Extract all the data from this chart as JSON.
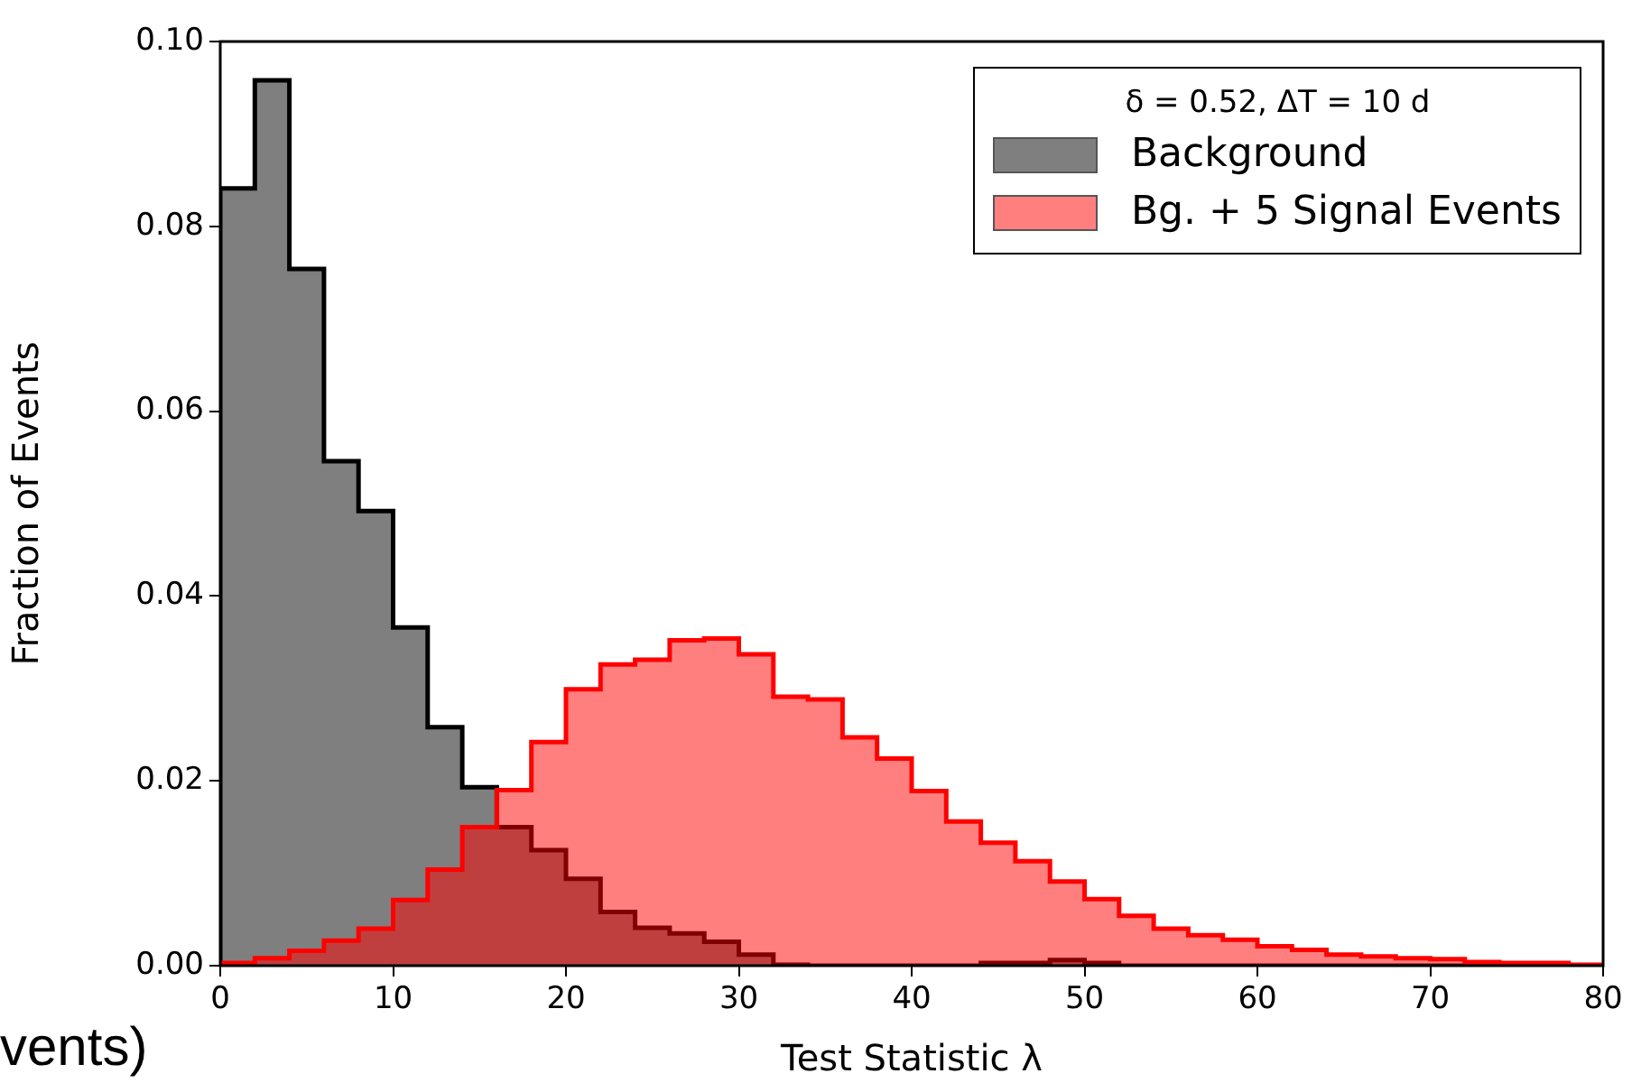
{
  "chart_data": {
    "type": "histogram",
    "xlabel": "Test Statistic λ",
    "ylabel": "Fraction of Events",
    "legend_title": "δ = 0.52,  ΔT = 10 d",
    "legend": "top right",
    "grid": false,
    "bins": [
      0,
      2,
      4,
      6,
      8,
      10,
      12,
      14,
      16,
      18,
      20,
      22,
      24,
      26,
      28,
      30,
      32,
      34,
      36,
      38,
      40,
      42,
      44,
      46,
      48,
      50,
      52,
      54,
      56,
      58,
      60,
      62,
      64,
      66,
      68,
      70,
      72,
      74,
      76,
      78,
      80
    ],
    "series": [
      {
        "name": "Background",
        "color": "#7f7f7f",
        "values": [
          0.0841,
          0.0958,
          0.0754,
          0.0546,
          0.0492,
          0.0366,
          0.0258,
          0.0193,
          0.015,
          0.0125,
          0.0094,
          0.0058,
          0.0041,
          0.0035,
          0.0026,
          0.0012,
          0.0001,
          0,
          0,
          0,
          0,
          0,
          0.0003,
          0.0003,
          0.0006,
          0.0003,
          0,
          0,
          0,
          0,
          0,
          0,
          0,
          0,
          0,
          0,
          0,
          0,
          0,
          0
        ]
      },
      {
        "name": "Bg. + 5 Signal Events",
        "color": "#ff0000",
        "values": [
          0.0003,
          0.0008,
          0.0016,
          0.0027,
          0.004,
          0.0071,
          0.0104,
          0.015,
          0.019,
          0.0242,
          0.0299,
          0.0326,
          0.0331,
          0.0352,
          0.0354,
          0.0337,
          0.0291,
          0.0288,
          0.0247,
          0.0224,
          0.0189,
          0.0156,
          0.0133,
          0.0113,
          0.0091,
          0.0072,
          0.0054,
          0.004,
          0.0033,
          0.0028,
          0.0021,
          0.0017,
          0.0012,
          0.001,
          0.0008,
          0.0007,
          0.0004,
          0.0003,
          0.0003,
          0.0001
        ]
      }
    ],
    "xlim": [
      0,
      80
    ],
    "xticks": [
      0,
      10,
      20,
      30,
      40,
      50,
      60,
      70,
      80
    ],
    "ylim": [
      0,
      0.1
    ],
    "yticks": [
      {
        "value": 0,
        "label": "0.00"
      },
      {
        "value": 0.02,
        "label": "0.02"
      },
      {
        "value": 0.04,
        "label": "0.04"
      },
      {
        "value": 0.06,
        "label": "0.06"
      },
      {
        "value": 0.08,
        "label": "0.08"
      },
      {
        "value": 0.1,
        "label": "0.10"
      }
    ],
    "annotations": [
      "vents)"
    ]
  }
}
